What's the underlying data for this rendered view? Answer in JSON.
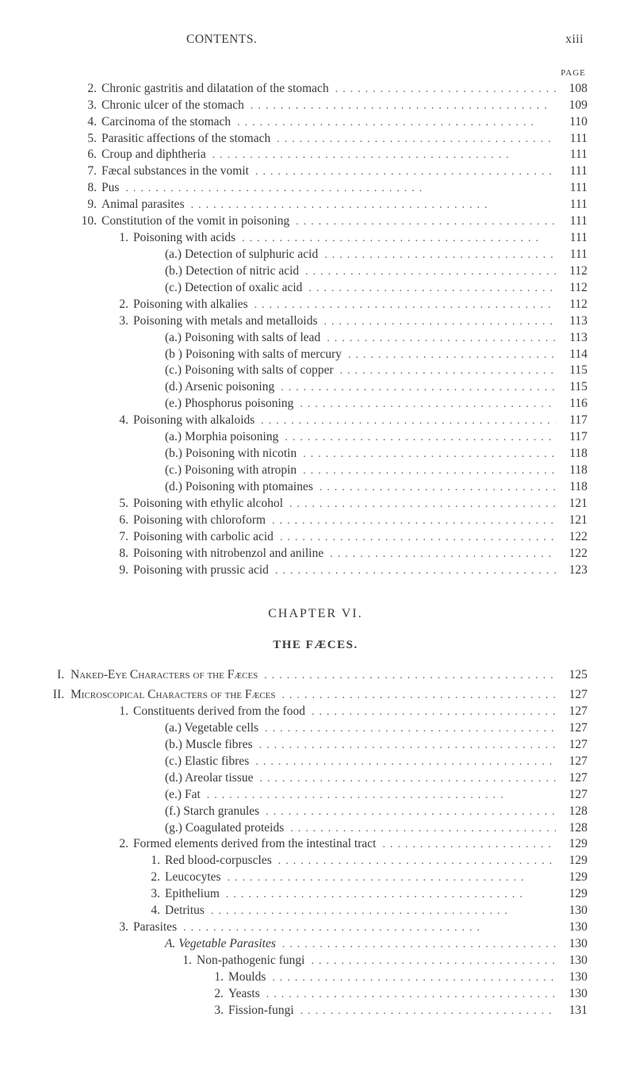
{
  "header": {
    "left": "CONTENTS.",
    "right": "xiii",
    "page_label": "PAGE"
  },
  "dots": "........................................",
  "top_entries": [
    {
      "indent": 0,
      "num": "2.",
      "text": "Chronic gastritis and dilatation of the stomach",
      "page": "108"
    },
    {
      "indent": 0,
      "num": "3.",
      "text": "Chronic ulcer of the stomach",
      "page": "109"
    },
    {
      "indent": 0,
      "num": "4.",
      "text": "Carcinoma of the stomach",
      "page": "110"
    },
    {
      "indent": 0,
      "num": "5.",
      "text": "Parasitic affections of the stomach",
      "page": "111"
    },
    {
      "indent": 0,
      "num": "6.",
      "text": "Croup and diphtheria",
      "page": "111"
    },
    {
      "indent": 0,
      "num": "7.",
      "text": "Fæcal substances in the vomit",
      "page": "111"
    },
    {
      "indent": 0,
      "num": "8.",
      "text": "Pus",
      "page": "111"
    },
    {
      "indent": 0,
      "num": "9.",
      "text": "Animal parasites",
      "page": "111"
    },
    {
      "indent": 0,
      "num": "10.",
      "text": "Constitution of the vomit in poisoning",
      "page": "111"
    },
    {
      "indent": 1,
      "num": "1.",
      "text": "Poisoning with acids",
      "page": "111"
    },
    {
      "indent": 2,
      "num": "",
      "text": "(a.) Detection of sulphuric acid",
      "page": "111"
    },
    {
      "indent": 2,
      "num": "",
      "text": "(b.) Detection of nitric acid",
      "page": "112"
    },
    {
      "indent": 2,
      "num": "",
      "text": "(c.) Detection of oxalic acid",
      "page": "112"
    },
    {
      "indent": 1,
      "num": "2.",
      "text": "Poisoning with alkalies",
      "page": "112"
    },
    {
      "indent": 1,
      "num": "3.",
      "text": "Poisoning with metals and metalloids",
      "page": "113"
    },
    {
      "indent": 2,
      "num": "",
      "text": "(a.) Poisoning with salts of lead",
      "page": "113"
    },
    {
      "indent": 2,
      "num": "",
      "text": "(b ) Poisoning with salts of mercury",
      "page": "114"
    },
    {
      "indent": 2,
      "num": "",
      "text": "(c.) Poisoning with salts of copper",
      "page": "115"
    },
    {
      "indent": 2,
      "num": "",
      "text": "(d.) Arsenic poisoning",
      "page": "115"
    },
    {
      "indent": 2,
      "num": "",
      "text": "(e.) Phosphorus poisoning",
      "page": "116"
    },
    {
      "indent": 1,
      "num": "4.",
      "text": "Poisoning with alkaloids",
      "page": "117"
    },
    {
      "indent": 2,
      "num": "",
      "text": "(a.) Morphia poisoning",
      "page": "117"
    },
    {
      "indent": 2,
      "num": "",
      "text": "(b.) Poisoning with nicotin",
      "page": "118"
    },
    {
      "indent": 2,
      "num": "",
      "text": "(c.) Poisoning with atropin",
      "page": "118"
    },
    {
      "indent": 2,
      "num": "",
      "text": "(d.) Poisoning with ptomaines",
      "page": "118"
    },
    {
      "indent": 1,
      "num": "5.",
      "text": "Poisoning with ethylic alcohol",
      "page": "121"
    },
    {
      "indent": 1,
      "num": "6.",
      "text": "Poisoning with chloroform",
      "page": "121"
    },
    {
      "indent": 1,
      "num": "7.",
      "text": "Poisoning with carbolic acid",
      "page": "122"
    },
    {
      "indent": 1,
      "num": "8.",
      "text": "Poisoning with nitrobenzol and aniline",
      "page": "122"
    },
    {
      "indent": 1,
      "num": "9.",
      "text": "Poisoning with prussic acid",
      "page": "123"
    }
  ],
  "chapter": {
    "title": "CHAPTER VI.",
    "sub": "THE FÆCES."
  },
  "sections": [
    {
      "roman": "I.",
      "text": "Naked-Eye Characters of the Fæces",
      "page": "125"
    },
    {
      "roman": "II.",
      "text": "Microscopical Characters of the Fæces",
      "page": "127"
    }
  ],
  "bottom_entries": [
    {
      "indent": 1,
      "num": "1.",
      "text": "Constituents derived from the food",
      "page": "127"
    },
    {
      "indent": 2,
      "num": "",
      "text": "(a.) Vegetable cells",
      "page": "127"
    },
    {
      "indent": 2,
      "num": "",
      "text": "(b.) Muscle fibres",
      "page": "127"
    },
    {
      "indent": 2,
      "num": "",
      "text": "(c.) Elastic fibres",
      "page": "127"
    },
    {
      "indent": 2,
      "num": "",
      "text": "(d.) Areolar tissue",
      "page": "127"
    },
    {
      "indent": 2,
      "num": "",
      "text": "(e.) Fat",
      "page": "127"
    },
    {
      "indent": 2,
      "num": "",
      "text": "(f.) Starch granules",
      "page": "128"
    },
    {
      "indent": 2,
      "num": "",
      "text": "(g.) Coagulated proteids",
      "page": "128"
    },
    {
      "indent": 1,
      "num": "2.",
      "text": "Formed elements derived from the intestinal tract",
      "page": "129"
    },
    {
      "indent": 2,
      "num": "1.",
      "text": "Red blood-corpuscles",
      "page": "129"
    },
    {
      "indent": 2,
      "num": "2.",
      "text": "Leucocytes",
      "page": "129"
    },
    {
      "indent": 2,
      "num": "3.",
      "text": "Epithelium",
      "page": "129"
    },
    {
      "indent": 2,
      "num": "4.",
      "text": "Detritus",
      "page": "130"
    },
    {
      "indent": 1,
      "num": "3.",
      "text": "Parasites",
      "page": "130"
    },
    {
      "indent": 2,
      "num": "",
      "text": "A. Vegetable Parasites",
      "italic": true,
      "page": "130"
    },
    {
      "indent": 3,
      "num": "1.",
      "text": "Non-pathogenic fungi",
      "page": "130"
    },
    {
      "indent": 4,
      "num": "1.",
      "text": "Moulds",
      "page": "130"
    },
    {
      "indent": 4,
      "num": "2.",
      "text": "Yeasts",
      "page": "130"
    },
    {
      "indent": 4,
      "num": "3.",
      "text": "Fission-fungi",
      "page": "131"
    }
  ]
}
